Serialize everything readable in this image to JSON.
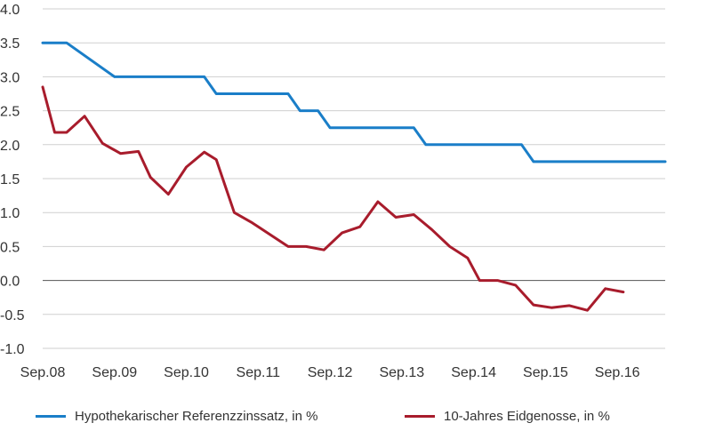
{
  "chart_data": {
    "type": "line",
    "title": "",
    "xlabel": "",
    "ylabel": "",
    "ylim": [
      -1.0,
      4.0
    ],
    "yticks": [
      "4.0",
      "3.5",
      "3.0",
      "2.5",
      "2.0",
      "1.5",
      "1.0",
      "0.5",
      "0.0",
      "-0.5",
      "-1.0"
    ],
    "xticks": [
      "Sep.08",
      "Sep.09",
      "Sep.10",
      "Sep.11",
      "Sep.12",
      "Sep.13",
      "Sep.14",
      "Sep.15",
      "Sep.16"
    ],
    "xlim": [
      "2008-09",
      "2017-05"
    ],
    "grid": true,
    "legend_position": "bottom",
    "series": [
      {
        "name": "Hypothekarischer Referenzzinssatz, in %",
        "color": "#1a7ec8",
        "points": [
          [
            "2008-09",
            3.5
          ],
          [
            "2009-01",
            3.5
          ],
          [
            "2009-09",
            3.0
          ],
          [
            "2010-12",
            3.0
          ],
          [
            "2011-02",
            2.75
          ],
          [
            "2012-02",
            2.75
          ],
          [
            "2012-04",
            2.5
          ],
          [
            "2012-07",
            2.5
          ],
          [
            "2012-09",
            2.25
          ],
          [
            "2013-11",
            2.25
          ],
          [
            "2014-01",
            2.0
          ],
          [
            "2015-05",
            2.0
          ],
          [
            "2015-07",
            1.75
          ],
          [
            "2017-05",
            1.75
          ]
        ]
      },
      {
        "name": "10-Jahres Eidgenosse, in %",
        "color": "#a81c2c",
        "points": [
          [
            "2008-09",
            2.85
          ],
          [
            "2008-11",
            2.18
          ],
          [
            "2009-01",
            2.18
          ],
          [
            "2009-04",
            2.42
          ],
          [
            "2009-07",
            2.02
          ],
          [
            "2009-10",
            1.87
          ],
          [
            "2010-01",
            1.9
          ],
          [
            "2010-03",
            1.52
          ],
          [
            "2010-06",
            1.27
          ],
          [
            "2010-09",
            1.67
          ],
          [
            "2010-12",
            1.89
          ],
          [
            "2011-02",
            1.78
          ],
          [
            "2011-05",
            1.0
          ],
          [
            "2011-08",
            0.85
          ],
          [
            "2012-02",
            0.5
          ],
          [
            "2012-05",
            0.5
          ],
          [
            "2012-08",
            0.45
          ],
          [
            "2012-11",
            0.7
          ],
          [
            "2013-02",
            0.79
          ],
          [
            "2013-05",
            1.16
          ],
          [
            "2013-08",
            0.93
          ],
          [
            "2013-11",
            0.97
          ],
          [
            "2014-02",
            0.75
          ],
          [
            "2014-05",
            0.5
          ],
          [
            "2014-08",
            0.33
          ],
          [
            "2014-10",
            0.0
          ],
          [
            "2015-01",
            0.0
          ],
          [
            "2015-04",
            -0.07
          ],
          [
            "2015-07",
            -0.36
          ],
          [
            "2015-10",
            -0.4
          ],
          [
            "2016-01",
            -0.37
          ],
          [
            "2016-04",
            -0.44
          ],
          [
            "2016-07",
            -0.12
          ],
          [
            "2016-10",
            -0.17
          ]
        ]
      }
    ]
  }
}
